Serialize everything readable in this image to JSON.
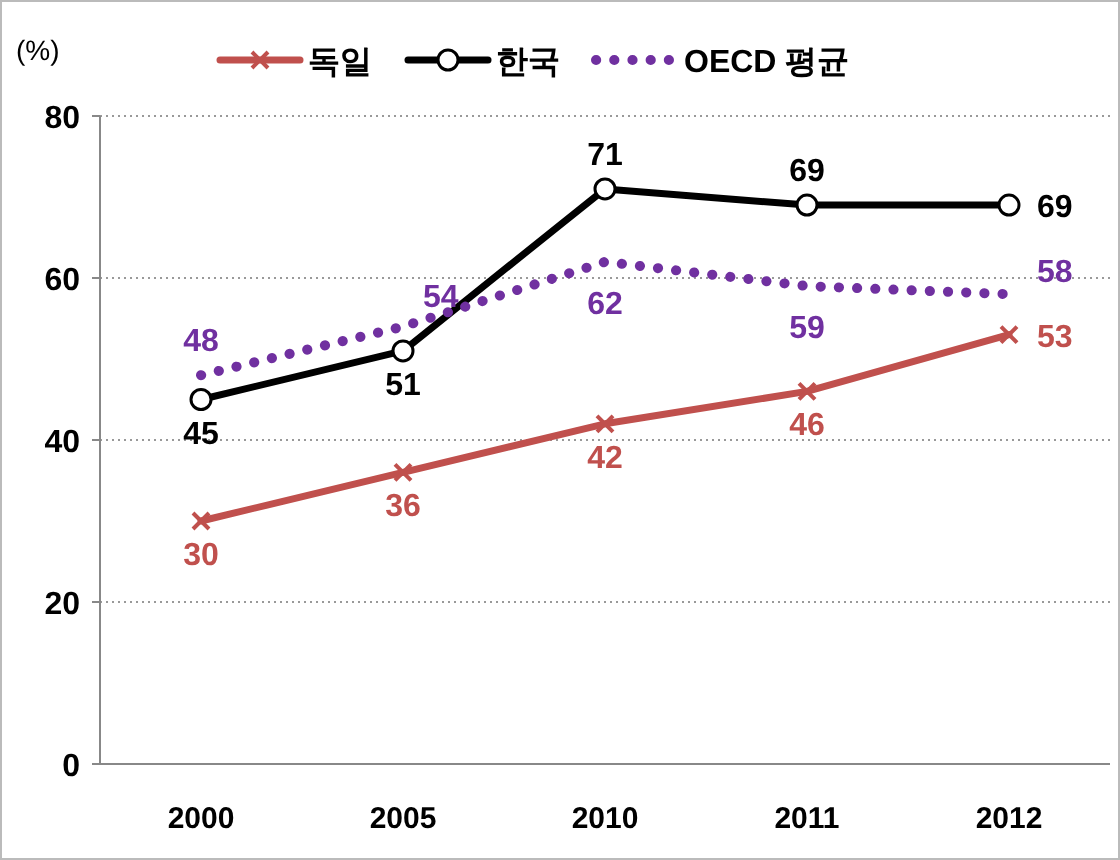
{
  "chart_data": {
    "type": "line",
    "ylabel": "(%)",
    "categories": [
      "2000",
      "2005",
      "2010",
      "2011",
      "2012"
    ],
    "series": [
      {
        "name": "독일",
        "color": "#c0504d",
        "values": [
          30,
          36,
          42,
          46,
          53
        ],
        "marker": "cross",
        "line_style": "solid"
      },
      {
        "name": "한국",
        "color": "#000000",
        "values": [
          45,
          51,
          71,
          69,
          69
        ],
        "marker": "circle",
        "line_style": "solid"
      },
      {
        "name": "OECD 평균",
        "color": "#7030a0",
        "values": [
          48,
          54,
          62,
          59,
          58
        ],
        "marker": "none",
        "line_style": "dotted"
      }
    ],
    "ylim": [
      0,
      80
    ],
    "yticks": [
      0,
      20,
      40,
      60,
      80
    ],
    "grid": "y",
    "legend": "top",
    "data_labels": true
  }
}
